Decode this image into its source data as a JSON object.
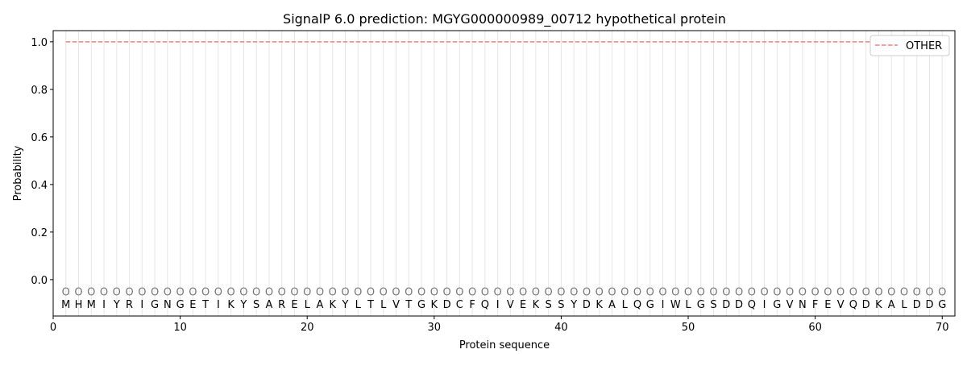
{
  "chart_data": {
    "type": "line",
    "title": "SignalP 6.0 prediction: MGYG000000989_00712 hypothetical protein",
    "xlabel": "Protein sequence",
    "ylabel": "Probability",
    "xlim": [
      0,
      71
    ],
    "ylim": [
      -0.153,
      1.047
    ],
    "xticks": [
      0,
      10,
      20,
      30,
      40,
      50,
      60,
      70
    ],
    "yticks": [
      "0.0",
      "0.2",
      "0.4",
      "0.6",
      "0.8",
      "1.0"
    ],
    "grid": "vertical lines at each residue",
    "legend": {
      "placement": "top-right",
      "entries": [
        "OTHER"
      ]
    },
    "sequence": "MHMIYRIGNGETIKYSARELAKYLTLVTGKDCFQIVEKSSYDKALQGIWLGSDDQIGVNFEVQDKALDDG",
    "region_labels": "OOOOOOOOOOOOOOOOOOOOOOOOOOOOOOOOOOOOOOOOOOOOOOOOOOOOOOOOOOOOOOOOOOOOOO",
    "series": [
      {
        "name": "OTHER",
        "color": "#f08080",
        "style": "dashed",
        "x_range": [
          1,
          70
        ],
        "value": 1.0
      }
    ]
  }
}
